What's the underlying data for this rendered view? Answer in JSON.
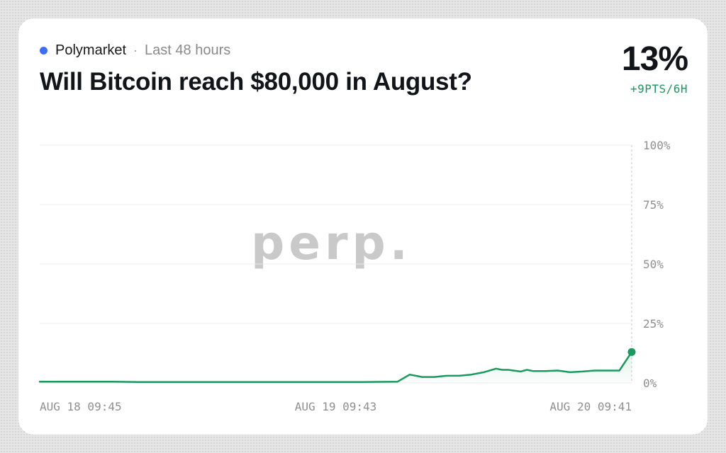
{
  "header": {
    "source": "Polymarket",
    "separator": "·",
    "time_range": "Last 48 hours",
    "title": "Will Bitcoin reach $80,000 in August?"
  },
  "stat": {
    "value": "13%",
    "change": "+9PTS/6H"
  },
  "watermark": "perp.",
  "colors": {
    "source_dot": "#3b6ef5",
    "line": "#1a9a5e",
    "change_text": "#1a9a5e"
  },
  "chart_data": {
    "type": "line",
    "title": "Will Bitcoin reach $80,000 in August?",
    "xlabel": "",
    "ylabel": "",
    "ylim": [
      0,
      100
    ],
    "yticks": [
      0,
      25,
      50,
      75,
      100
    ],
    "ytick_labels": [
      "0%",
      "25%",
      "50%",
      "75%",
      "100%"
    ],
    "xtick_labels": [
      "AUG 18 09:45",
      "AUG 19 09:43",
      "AUG 20 09:41"
    ],
    "x_hours_axis": [
      0,
      24,
      48
    ],
    "grid": true,
    "series": [
      {
        "x": [
          0,
          2,
          4,
          6,
          8,
          10,
          12,
          14,
          16,
          18,
          20,
          22,
          24,
          26,
          29,
          30,
          31,
          32,
          33,
          34,
          35,
          36,
          37,
          37.5,
          38,
          39,
          39.5,
          40,
          41,
          42,
          43,
          44,
          45,
          46,
          47,
          48
        ],
        "values": [
          0.5,
          0.5,
          0.5,
          0.5,
          0.4,
          0.4,
          0.4,
          0.4,
          0.4,
          0.4,
          0.4,
          0.4,
          0.4,
          0.4,
          0.5,
          3.5,
          2.5,
          2.5,
          3.0,
          3.0,
          3.5,
          4.5,
          6.0,
          5.5,
          5.5,
          4.8,
          5.5,
          5.0,
          5.0,
          5.2,
          4.5,
          4.8,
          5.2,
          5.2,
          5.2,
          13
        ]
      }
    ]
  }
}
